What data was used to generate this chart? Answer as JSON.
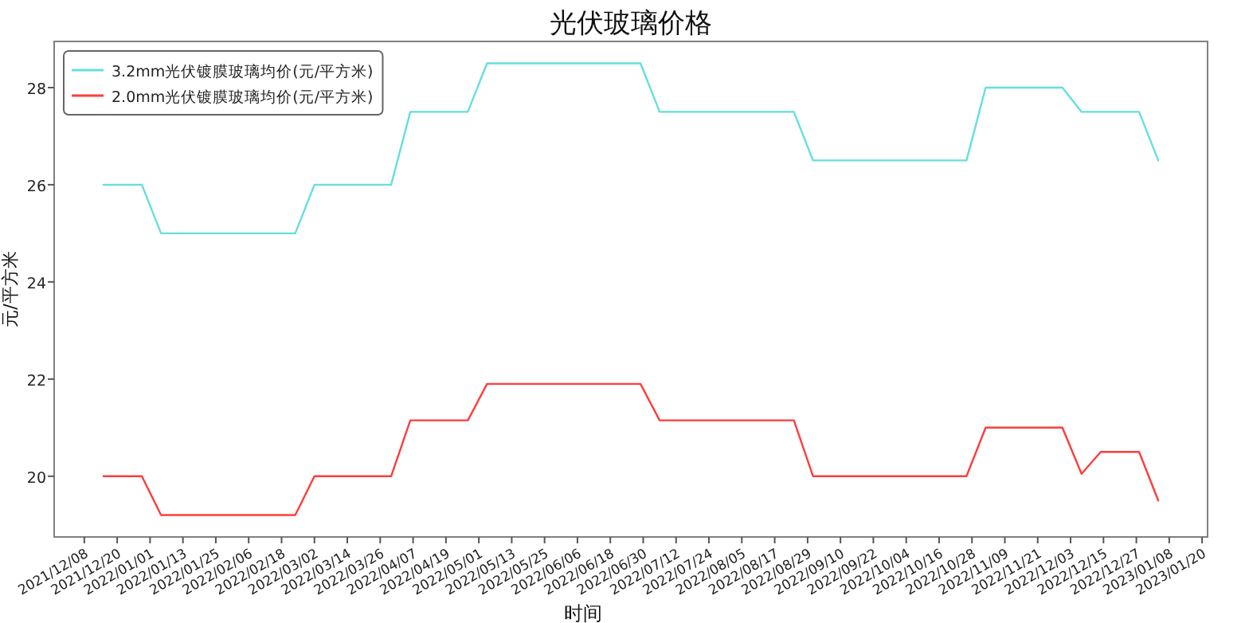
{
  "chart_data": {
    "type": "line",
    "title": "光伏玻璃价格",
    "xlabel": "时间",
    "ylabel": "元/平方米",
    "xlim": [
      "2021-11-27",
      "2023-01-22"
    ],
    "ylim": [
      18.75,
      28.95
    ],
    "xticks": [
      {
        "value": "2021-12-08",
        "label": "2021/12/08"
      },
      {
        "value": "2021-12-20",
        "label": "2021/12/20"
      },
      {
        "value": "2022-01-01",
        "label": "2022/01/01"
      },
      {
        "value": "2022-01-13",
        "label": "2022/01/13"
      },
      {
        "value": "2022-01-25",
        "label": "2022/01/25"
      },
      {
        "value": "2022-02-06",
        "label": "2022/02/06"
      },
      {
        "value": "2022-02-18",
        "label": "2022/02/18"
      },
      {
        "value": "2022-03-02",
        "label": "2022/03/02"
      },
      {
        "value": "2022-03-14",
        "label": "2022/03/14"
      },
      {
        "value": "2022-03-26",
        "label": "2022/03/26"
      },
      {
        "value": "2022-04-07",
        "label": "2022/04/07"
      },
      {
        "value": "2022-04-19",
        "label": "2022/04/19"
      },
      {
        "value": "2022-05-01",
        "label": "2022/05/01"
      },
      {
        "value": "2022-05-13",
        "label": "2022/05/13"
      },
      {
        "value": "2022-05-25",
        "label": "2022/05/25"
      },
      {
        "value": "2022-06-06",
        "label": "2022/06/06"
      },
      {
        "value": "2022-06-18",
        "label": "2022/06/18"
      },
      {
        "value": "2022-06-30",
        "label": "2022/06/30"
      },
      {
        "value": "2022-07-12",
        "label": "2022/07/12"
      },
      {
        "value": "2022-07-24",
        "label": "2022/07/24"
      },
      {
        "value": "2022-08-05",
        "label": "2022/08/05"
      },
      {
        "value": "2022-08-17",
        "label": "2022/08/17"
      },
      {
        "value": "2022-08-29",
        "label": "2022/08/29"
      },
      {
        "value": "2022-09-10",
        "label": "2022/09/10"
      },
      {
        "value": "2022-09-22",
        "label": "2022/09/22"
      },
      {
        "value": "2022-10-04",
        "label": "2022/10/04"
      },
      {
        "value": "2022-10-16",
        "label": "2022/10/16"
      },
      {
        "value": "2022-10-28",
        "label": "2022/10/28"
      },
      {
        "value": "2022-11-09",
        "label": "2022/11/09"
      },
      {
        "value": "2022-11-21",
        "label": "2022/11/21"
      },
      {
        "value": "2022-12-03",
        "label": "2022/12/03"
      },
      {
        "value": "2022-12-15",
        "label": "2022/12/15"
      },
      {
        "value": "2022-12-27",
        "label": "2022/12/27"
      },
      {
        "value": "2023-01-08",
        "label": "2023/01/08"
      },
      {
        "value": "2023-01-20",
        "label": "2023/01/20"
      }
    ],
    "yticks": [
      20,
      22,
      24,
      26,
      28
    ],
    "grid": false,
    "legend": "top left",
    "line_style": "solid",
    "marker": "none",
    "series": [
      {
        "name": "3.2mm光伏镀膜玻璃均价(元/平方米)",
        "color": "#66dede",
        "x": [
          "2021-12-15",
          "2021-12-29",
          "2022-01-05",
          "2022-02-23",
          "2022-03-02",
          "2022-03-30",
          "2022-04-06",
          "2022-04-27",
          "2022-05-04",
          "2022-06-29",
          "2022-07-06",
          "2022-08-24",
          "2022-08-31",
          "2022-10-26",
          "2022-11-02",
          "2022-11-30",
          "2022-12-07",
          "2022-12-28",
          "2023-01-04"
        ],
        "values": [
          26,
          26,
          25,
          25,
          26,
          26,
          27.5,
          27.5,
          28.5,
          28.5,
          27.5,
          27.5,
          26.5,
          26.5,
          28,
          28,
          27.5,
          27.5,
          26.5
        ]
      },
      {
        "name": "2.0mm光伏镀膜玻璃均价(元/平方米)",
        "color": "#ff3c3c",
        "x": [
          "2021-12-15",
          "2021-12-29",
          "2022-01-05",
          "2022-02-23",
          "2022-03-02",
          "2022-03-30",
          "2022-04-06",
          "2022-04-27",
          "2022-05-04",
          "2022-06-29",
          "2022-07-06",
          "2022-08-24",
          "2022-08-31",
          "2022-10-26",
          "2022-11-02",
          "2022-11-30",
          "2022-12-07",
          "2022-12-14",
          "2022-12-28",
          "2023-01-04"
        ],
        "values": [
          20,
          20,
          19.2,
          19.2,
          20,
          20,
          21.15,
          21.15,
          21.9,
          21.9,
          21.15,
          21.15,
          20,
          20,
          21,
          21,
          20.05,
          20.5,
          20.5,
          19.5
        ]
      }
    ]
  }
}
